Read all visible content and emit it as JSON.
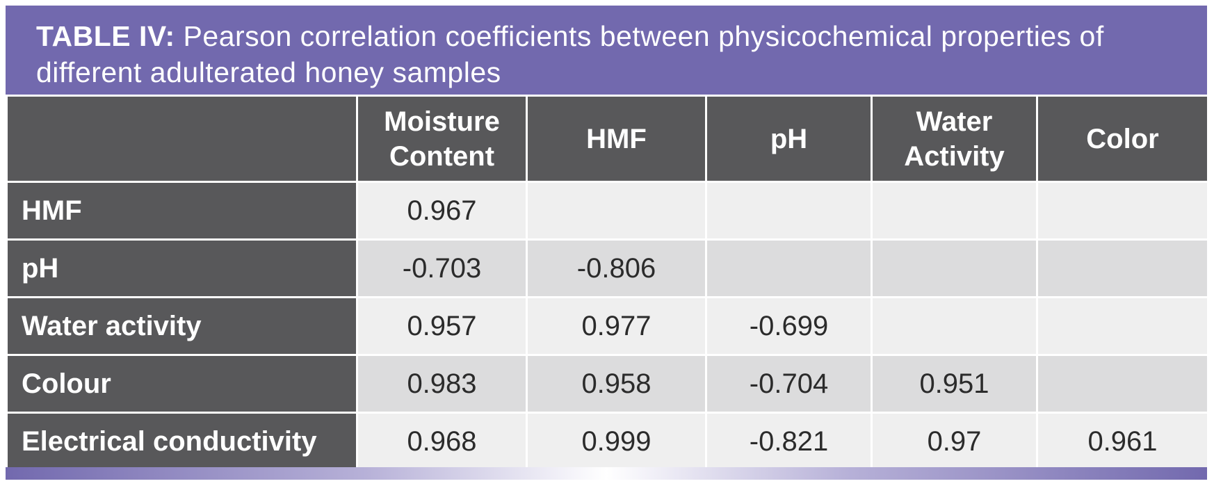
{
  "title": {
    "label": "TABLE IV:",
    "text": "Pearson correlation coefficients between physicochemical properties of different adulterated honey samples"
  },
  "table": {
    "headers": [
      "",
      "Moisture Content",
      "HMF",
      "pH",
      "Water Activity",
      "Color"
    ],
    "rows": [
      {
        "label": "HMF",
        "values": [
          "0.967",
          "",
          "",
          "",
          ""
        ]
      },
      {
        "label": "pH",
        "values": [
          "-0.703",
          "-0.806",
          "",
          "",
          ""
        ]
      },
      {
        "label": "Water activity",
        "values": [
          "0.957",
          "0.977",
          "-0.699",
          "",
          ""
        ]
      },
      {
        "label": "Colour",
        "values": [
          "0.983",
          "0.958",
          "-0.704",
          "0.951",
          ""
        ]
      },
      {
        "label": "Electrical conductivity",
        "values": [
          "0.968",
          "0.999",
          "-0.821",
          "0.97",
          "0.961"
        ]
      }
    ]
  },
  "colors": {
    "title_bar": "#7269ae",
    "header_bg": "#58585a",
    "row_light": "#efefef",
    "row_dark": "#dcdcdd"
  }
}
